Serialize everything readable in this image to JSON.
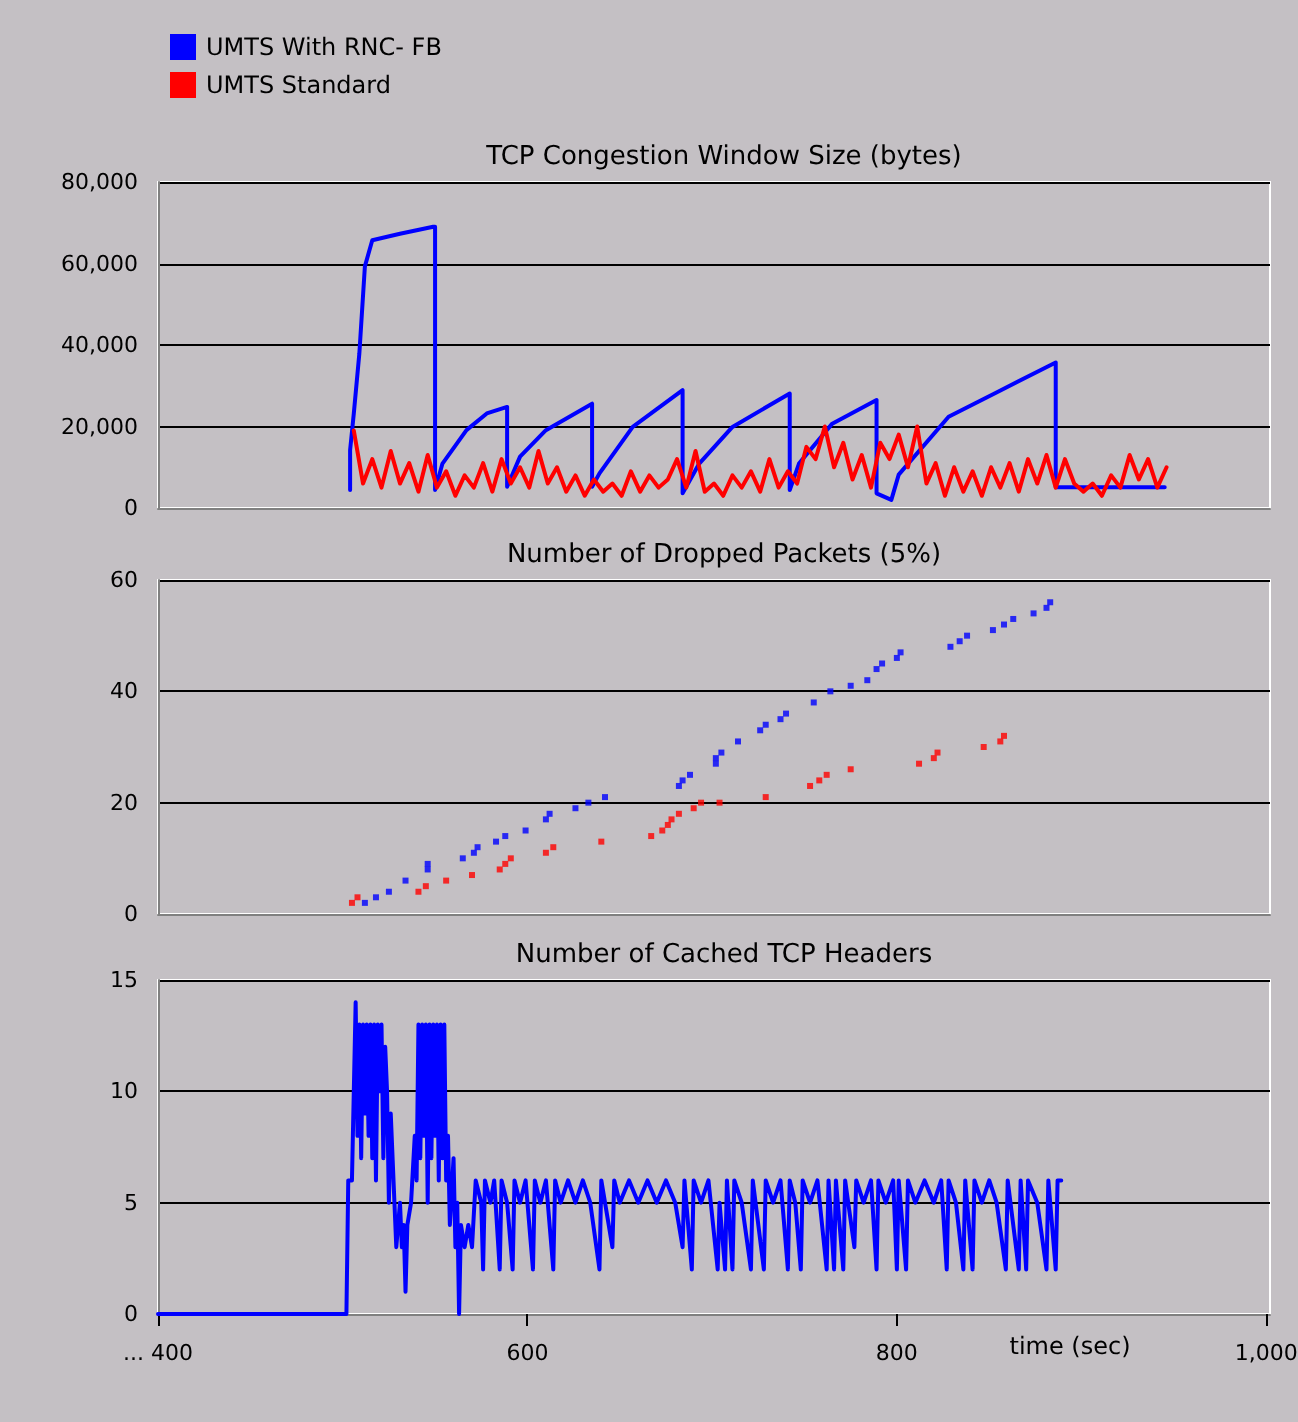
{
  "chart_data": [
    {
      "type": "line",
      "title": "TCP Congestion Window Size (bytes)",
      "xlim": [
        400,
        1002
      ],
      "ylim": [
        0,
        80000
      ],
      "yticks": [
        0,
        {
          "value": 20000,
          "label": "20,000"
        },
        {
          "value": 40000,
          "label": "40,000"
        },
        {
          "value": 60000,
          "label": "60,000"
        },
        {
          "value": 80000,
          "label": "80,000"
        }
      ],
      "grid": "y",
      "legend": "top left",
      "tick_labels": "y",
      "marker": "none",
      "line_style": "solid",
      "series": [
        {
          "name": "UMTS With RNC- FB",
          "color": "#0000ff",
          "x": [
            504,
            504,
            506,
            509,
            512,
            516,
            531,
            549,
            550,
            550,
            554,
            567,
            578,
            589,
            589,
            596,
            610,
            635,
            635,
            639,
            657,
            684,
            684,
            693,
            711,
            742,
            742,
            747,
            765,
            789,
            789,
            797,
            801,
            828,
            855,
            886,
            886,
            945
          ],
          "values": [
            4400,
            14200,
            23200,
            37900,
            59300,
            65700,
            67300,
            69000,
            69000,
            4400,
            10900,
            19100,
            23200,
            24800,
            5200,
            12600,
            19100,
            25600,
            5200,
            8500,
            19900,
            28900,
            3600,
            10900,
            19900,
            28100,
            4400,
            10900,
            20700,
            26500,
            3600,
            2000,
            8200,
            22400,
            28600,
            35700,
            5100,
            5100
          ]
        },
        {
          "name": "UMTS Standard",
          "color": "#ff0000",
          "x": [
            506,
            511,
            516,
            521,
            526,
            531,
            536,
            541,
            546,
            551,
            556,
            561,
            566,
            571,
            576,
            581,
            586,
            591,
            596,
            601,
            606,
            611,
            616,
            621,
            626,
            631,
            636,
            641,
            646,
            651,
            656,
            661,
            666,
            671,
            676,
            681,
            686,
            691,
            696,
            701,
            706,
            711,
            716,
            721,
            726,
            731,
            736,
            741,
            746,
            751,
            756,
            761,
            766,
            771,
            776,
            781,
            786,
            791,
            796,
            801,
            806,
            811,
            816,
            821,
            826,
            831,
            836,
            841,
            846,
            851,
            856,
            861,
            866,
            871,
            876,
            881,
            886,
            891,
            896,
            901,
            906,
            911,
            916,
            921,
            926,
            931,
            936,
            941,
            946
          ],
          "values": [
            19000,
            6000,
            12000,
            5000,
            14000,
            6000,
            11000,
            4000,
            13000,
            5000,
            9000,
            3000,
            8000,
            5000,
            11000,
            4000,
            12000,
            6000,
            10000,
            5000,
            14000,
            6000,
            10000,
            4000,
            8000,
            3000,
            7000,
            4000,
            6000,
            3000,
            9000,
            4000,
            8000,
            5000,
            7000,
            12000,
            5000,
            14000,
            4000,
            6000,
            3000,
            8000,
            5000,
            9000,
            4000,
            12000,
            5000,
            9000,
            6000,
            15000,
            12000,
            20000,
            10000,
            16000,
            7000,
            13000,
            5000,
            16000,
            12000,
            18000,
            10000,
            20000,
            6000,
            11000,
            3000,
            10000,
            4000,
            9000,
            3000,
            10000,
            5000,
            11000,
            4000,
            12000,
            6000,
            13000,
            5000,
            12000,
            6000,
            4000,
            6000,
            3000,
            8000,
            5000,
            13000,
            7000,
            12000,
            5000,
            10000
          ]
        }
      ]
    },
    {
      "type": "scatter",
      "title": "Number of Dropped Packets (5%)",
      "xlim": [
        400,
        1002
      ],
      "ylim": [
        0,
        60
      ],
      "yticks": [
        0,
        20,
        40,
        60
      ],
      "grid": "y",
      "tick_labels": "y",
      "marker": "square",
      "series": [
        {
          "color": "#0000ff",
          "x": [
            512,
            518,
            525,
            534,
            546,
            546,
            565,
            571,
            573,
            583,
            588,
            599,
            610,
            612,
            626,
            633,
            642,
            682,
            684,
            688,
            702,
            702,
            705,
            714,
            726,
            729,
            737,
            740,
            755,
            764,
            775,
            784,
            789,
            792,
            800,
            802,
            829,
            834,
            838,
            852,
            858,
            863,
            874,
            881,
            883
          ],
          "values": [
            2,
            3,
            4,
            6,
            8,
            9,
            10,
            11,
            12,
            13,
            14,
            15,
            17,
            18,
            19,
            20,
            21,
            23,
            24,
            25,
            27,
            28,
            29,
            31,
            33,
            34,
            35,
            36,
            38,
            40,
            41,
            42,
            44,
            45,
            46,
            47,
            48,
            49,
            50,
            51,
            52,
            53,
            54,
            55,
            56
          ]
        },
        {
          "color": "#ff0000",
          "x": [
            505,
            508,
            541,
            545,
            556,
            570,
            585,
            588,
            591,
            610,
            614,
            640,
            667,
            673,
            676,
            678,
            682,
            690,
            694,
            704,
            729,
            753,
            758,
            762,
            775,
            812,
            820,
            822,
            847,
            856,
            858
          ],
          "values": [
            2,
            3,
            4,
            5,
            6,
            7,
            8,
            9,
            10,
            11,
            12,
            13,
            14,
            15,
            16,
            17,
            18,
            19,
            20,
            20,
            21,
            23,
            24,
            25,
            26,
            27,
            28,
            29,
            30,
            31,
            32
          ]
        }
      ]
    },
    {
      "type": "line",
      "title": "Number of Cached TCP Headers",
      "xlabel": "time (sec)",
      "xlim": [
        400,
        1002
      ],
      "xticks": [
        {
          "value": 400,
          "label": "... 400"
        },
        600,
        800,
        {
          "value": 1000,
          "label": "1,000"
        }
      ],
      "ylim": [
        0,
        15
      ],
      "yticks": [
        0,
        5,
        10,
        15
      ],
      "grid": "y",
      "marker": "none",
      "line_style": "solid",
      "series": [
        {
          "color": "#0000ff",
          "x": [
            400,
            502,
            503,
            505,
            506,
            507,
            508,
            509,
            510,
            511,
            512,
            513,
            514,
            515,
            516,
            517,
            518,
            519,
            520,
            521,
            522,
            523,
            524,
            525,
            526,
            527,
            528,
            529,
            531,
            532,
            533,
            534,
            535,
            537,
            539,
            540,
            541,
            542,
            543,
            544,
            545,
            546,
            547,
            548,
            549,
            550,
            551,
            552,
            553,
            554,
            555,
            556,
            557,
            558,
            560,
            561,
            562,
            563,
            564,
            566,
            568,
            570,
            572,
            575,
            576,
            577,
            580,
            582,
            585,
            586,
            589,
            592,
            593,
            596,
            599,
            603,
            604,
            607,
            610,
            614,
            615,
            618,
            622,
            626,
            630,
            634,
            639,
            640,
            646,
            647,
            650,
            655,
            660,
            665,
            670,
            675,
            680,
            684,
            685,
            689,
            690,
            694,
            698,
            703,
            704,
            707,
            708,
            711,
            712,
            716,
            721,
            722,
            728,
            729,
            733,
            737,
            741,
            742,
            745,
            748,
            749,
            753,
            757,
            762,
            763,
            766,
            767,
            771,
            772,
            777,
            778,
            782,
            786,
            789,
            790,
            794,
            798,
            800,
            801,
            805,
            806,
            810,
            815,
            820,
            824,
            827,
            828,
            832,
            836,
            837,
            841,
            842,
            846,
            850,
            854,
            859,
            860,
            866,
            867,
            870,
            871,
            876,
            881,
            882,
            886,
            887,
            889
          ],
          "values": [
            0,
            0,
            6,
            6,
            10,
            14,
            8,
            13,
            7,
            13,
            9,
            13,
            8,
            13,
            7,
            13,
            6,
            13,
            10,
            13,
            7,
            12,
            10,
            5,
            9,
            7,
            5,
            3,
            5,
            3,
            4,
            1,
            4,
            5,
            8,
            6,
            13,
            7,
            13,
            8,
            13,
            5,
            13,
            7,
            13,
            8,
            13,
            6,
            13,
            7,
            13,
            6,
            8,
            4,
            7,
            3,
            5,
            0,
            4,
            3,
            4,
            3,
            6,
            5,
            2,
            6,
            5,
            6,
            2,
            6,
            5,
            2,
            6,
            5,
            6,
            2,
            6,
            5,
            6,
            2,
            6,
            5,
            6,
            5,
            6,
            5,
            2,
            6,
            3,
            6,
            5,
            6,
            5,
            6,
            5,
            6,
            5,
            3,
            6,
            2,
            6,
            5,
            6,
            2,
            5,
            2,
            6,
            2,
            6,
            5,
            2,
            6,
            2,
            6,
            5,
            6,
            2,
            6,
            5,
            2,
            6,
            5,
            6,
            2,
            6,
            2,
            6,
            2,
            6,
            3,
            6,
            5,
            6,
            2,
            6,
            5,
            6,
            2,
            6,
            2,
            6,
            5,
            6,
            5,
            6,
            2,
            6,
            5,
            2,
            6,
            2,
            6,
            5,
            6,
            5,
            2,
            6,
            2,
            6,
            2,
            6,
            5,
            2,
            6,
            2,
            6,
            6
          ]
        }
      ]
    }
  ]
}
